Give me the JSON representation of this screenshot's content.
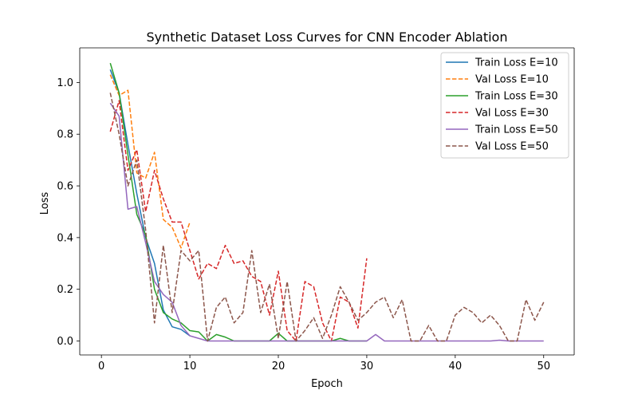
{
  "chart_data": {
    "type": "line",
    "title": "Synthetic Dataset Loss Curves for CNN Encoder Ablation",
    "xlabel": "Epoch",
    "ylabel": "Loss",
    "xlim": [
      -2.45,
      53.45
    ],
    "ylim": [
      -0.054,
      1.134
    ],
    "xticks": [
      0,
      10,
      20,
      30,
      40,
      50
    ],
    "yticks": [
      0.0,
      0.2,
      0.4,
      0.6,
      0.8,
      1.0
    ],
    "xtick_labels": [
      "0",
      "10",
      "20",
      "30",
      "40",
      "50"
    ],
    "ytick_labels": [
      "0.0",
      "0.2",
      "0.4",
      "0.6",
      "0.8",
      "1.0"
    ],
    "grid": false,
    "legend_position": "top-right",
    "series": [
      {
        "name": "Train Loss E=10",
        "color": "#1f77b4",
        "style": "solid",
        "x": [
          1,
          2,
          3,
          4,
          5,
          6,
          7,
          8,
          9,
          10
        ],
        "y": [
          1.05,
          0.96,
          0.76,
          0.57,
          0.4,
          0.3,
          0.12,
          0.055,
          0.045,
          0.02
        ]
      },
      {
        "name": "Val Loss E=10",
        "color": "#ff7f0e",
        "style": "dashed",
        "x": [
          1,
          2,
          3,
          4,
          5,
          6,
          7,
          8,
          9,
          10
        ],
        "y": [
          1.03,
          0.95,
          0.97,
          0.65,
          0.63,
          0.73,
          0.47,
          0.44,
          0.36,
          0.46
        ]
      },
      {
        "name": "Train Loss E=30",
        "color": "#2ca02c",
        "style": "solid",
        "x": [
          1,
          2,
          3,
          4,
          5,
          6,
          7,
          8,
          9,
          10,
          11,
          12,
          13,
          14,
          15,
          16,
          17,
          18,
          19,
          20,
          21,
          22,
          23,
          24,
          25,
          26,
          27,
          28,
          29,
          30
        ],
        "y": [
          1.075,
          0.96,
          0.72,
          0.49,
          0.41,
          0.2,
          0.11,
          0.085,
          0.07,
          0.04,
          0.035,
          0.0,
          0.025,
          0.015,
          0.0,
          0.0,
          0.0,
          0.0,
          0.0,
          0.03,
          0.0,
          0.0,
          0.0,
          0.0,
          0.0,
          0.0,
          0.01,
          0.0,
          0.0,
          0.0
        ]
      },
      {
        "name": "Val Loss E=30",
        "color": "#d62728",
        "style": "dashed",
        "x": [
          1,
          2,
          3,
          4,
          5,
          6,
          7,
          8,
          9,
          10,
          11,
          12,
          13,
          14,
          15,
          16,
          17,
          18,
          19,
          20,
          21,
          22,
          23,
          24,
          25,
          26,
          27,
          28,
          29,
          30
        ],
        "y": [
          0.81,
          0.93,
          0.66,
          0.74,
          0.5,
          0.66,
          0.55,
          0.46,
          0.46,
          0.35,
          0.24,
          0.3,
          0.28,
          0.37,
          0.3,
          0.31,
          0.25,
          0.23,
          0.1,
          0.27,
          0.04,
          0.0,
          0.23,
          0.21,
          0.07,
          0.0,
          0.17,
          0.15,
          0.05,
          0.32
        ]
      },
      {
        "name": "Train Loss E=50",
        "color": "#9467bd",
        "style": "solid",
        "x": [
          1,
          2,
          3,
          4,
          5,
          6,
          7,
          8,
          9,
          10,
          11,
          12,
          13,
          14,
          15,
          16,
          17,
          18,
          19,
          20,
          21,
          22,
          23,
          24,
          25,
          26,
          27,
          28,
          29,
          30,
          31,
          32,
          33,
          34,
          35,
          36,
          37,
          38,
          39,
          40,
          41,
          42,
          43,
          44,
          45,
          46,
          47,
          48,
          49,
          50
        ],
        "y": [
          0.92,
          0.87,
          0.51,
          0.52,
          0.38,
          0.23,
          0.18,
          0.15,
          0.06,
          0.02,
          0.01,
          0.0,
          0.0,
          0.0,
          0.0,
          0.0,
          0.0,
          0.0,
          0.0,
          0.0,
          0.0,
          0.0,
          0.0,
          0.0,
          0.0,
          0.0,
          0.0,
          0.0,
          0.0,
          0.0,
          0.025,
          0.0,
          0.0,
          0.0,
          0.0,
          0.0,
          0.0,
          0.0,
          0.0,
          0.0,
          0.0,
          0.0,
          0.0,
          0.0,
          0.003,
          0.0,
          0.0,
          0.0,
          0.0,
          0.0
        ]
      },
      {
        "name": "Val Loss E=50",
        "color": "#8c564b",
        "style": "dashed",
        "x": [
          1,
          2,
          3,
          4,
          5,
          6,
          7,
          8,
          9,
          10,
          11,
          12,
          13,
          14,
          15,
          16,
          17,
          18,
          19,
          20,
          21,
          22,
          23,
          24,
          25,
          26,
          27,
          28,
          29,
          30,
          31,
          32,
          33,
          34,
          35,
          36,
          37,
          38,
          39,
          40,
          41,
          42,
          43,
          44,
          45,
          46,
          47,
          48,
          49,
          50
        ],
        "y": [
          0.96,
          0.8,
          0.6,
          0.7,
          0.43,
          0.07,
          0.37,
          0.11,
          0.35,
          0.31,
          0.35,
          0.0,
          0.13,
          0.17,
          0.07,
          0.11,
          0.35,
          0.11,
          0.22,
          0.01,
          0.23,
          0.0,
          0.04,
          0.09,
          0.01,
          0.1,
          0.21,
          0.15,
          0.08,
          0.11,
          0.15,
          0.17,
          0.09,
          0.16,
          0.0,
          0.0,
          0.06,
          0.0,
          0.0,
          0.1,
          0.13,
          0.11,
          0.07,
          0.1,
          0.06,
          0.0,
          0.0,
          0.16,
          0.08,
          0.15
        ]
      }
    ]
  }
}
